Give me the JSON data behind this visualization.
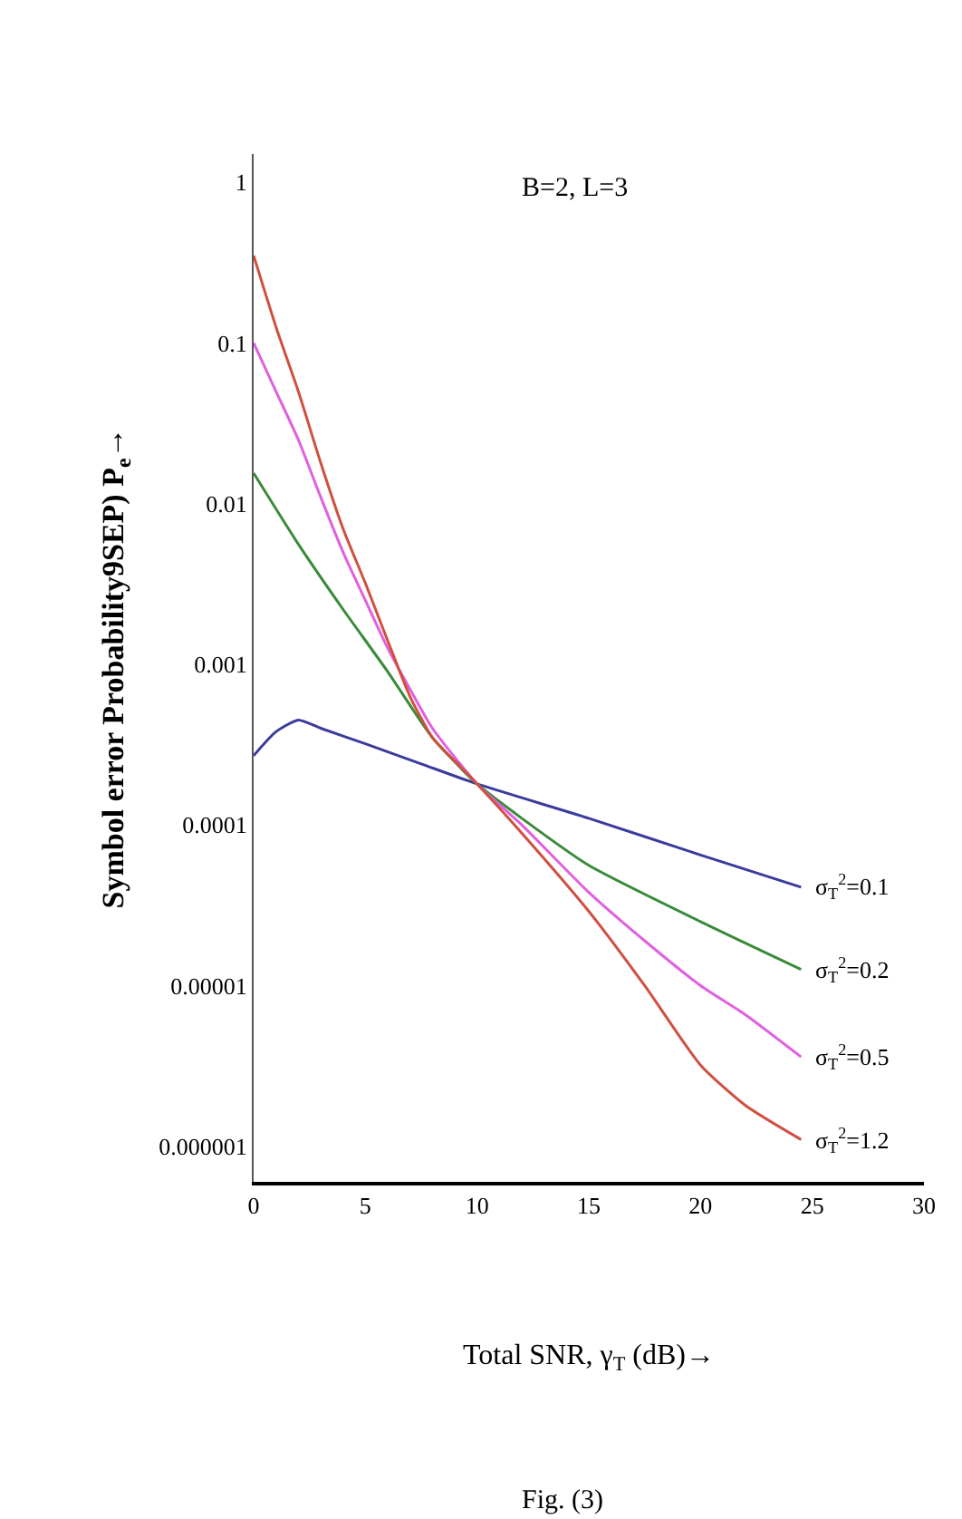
{
  "chart_data": {
    "type": "line",
    "xlabel": "Total SNR, γ$_{T}$ (dB)→",
    "ylabel": "Symbol error Probability9SEP) P$_{e}$→",
    "annotations": [
      "B=2, L=3",
      "Fig. (3)"
    ],
    "log": "y",
    "xlim": [
      0,
      30
    ],
    "xticks": [
      0,
      5,
      10,
      15,
      20,
      25,
      30
    ],
    "ylim": [
      6e-07,
      1.5
    ],
    "yticks": [
      1,
      0.1,
      0.01,
      0.001,
      0.0001,
      {
        "value": 1e-05,
        "label": "0.00001"
      },
      {
        "value": 1e-06,
        "label": "0.000001"
      }
    ],
    "grid": false,
    "legend": false,
    "marker": "none",
    "line_style": "solid",
    "series": [
      {
        "name": "σ$_{T}$$^{2}$=0.1",
        "color": "#3b3b9c",
        "x": [
          0,
          1,
          2,
          3,
          5,
          7.5,
          10,
          15,
          20,
          24.5
        ],
        "values": [
          0.00027,
          0.00038,
          0.00045,
          0.0004,
          0.00032,
          0.00024,
          0.00018,
          0.00011,
          6.5e-05,
          4.1e-05
        ]
      },
      {
        "name": "σ$_{T}$$^{2}$=0.2",
        "color": "#3a8a3a",
        "x": [
          0,
          2,
          4,
          6,
          8,
          10,
          12,
          15,
          20,
          24.5
        ],
        "values": [
          0.0155,
          0.0056,
          0.0022,
          0.0009,
          0.00035,
          0.00018,
          0.00011,
          5.6e-05,
          2.5e-05,
          1.26e-05
        ]
      },
      {
        "name": "σ$_{T}$$^{2}$=0.5",
        "color": "#e060e0",
        "x": [
          0,
          1,
          2,
          3,
          4,
          5,
          6,
          7,
          8,
          10,
          12,
          15,
          17.5,
          20,
          22,
          24.5
        ],
        "values": [
          0.1,
          0.05,
          0.025,
          0.011,
          0.005,
          0.0025,
          0.00126,
          0.0007,
          0.0004,
          0.00018,
          0.0001,
          3.8e-05,
          1.9e-05,
          1e-05,
          6.6e-06,
          3.6e-06
        ]
      },
      {
        "name": "σ$_{T}$$^{2}$=1.2",
        "color": "#d05040",
        "x": [
          0,
          1,
          2,
          3,
          4,
          5,
          6,
          7,
          8,
          9,
          10,
          12,
          15,
          17.5,
          20,
          22,
          24.5
        ],
        "values": [
          0.35,
          0.126,
          0.05,
          0.018,
          0.007,
          0.0032,
          0.0014,
          0.00063,
          0.00035,
          0.00025,
          0.00018,
          8.9e-05,
          2.9e-05,
          1e-05,
          3.2e-06,
          1.8e-06,
          1.1e-06
        ]
      }
    ]
  }
}
